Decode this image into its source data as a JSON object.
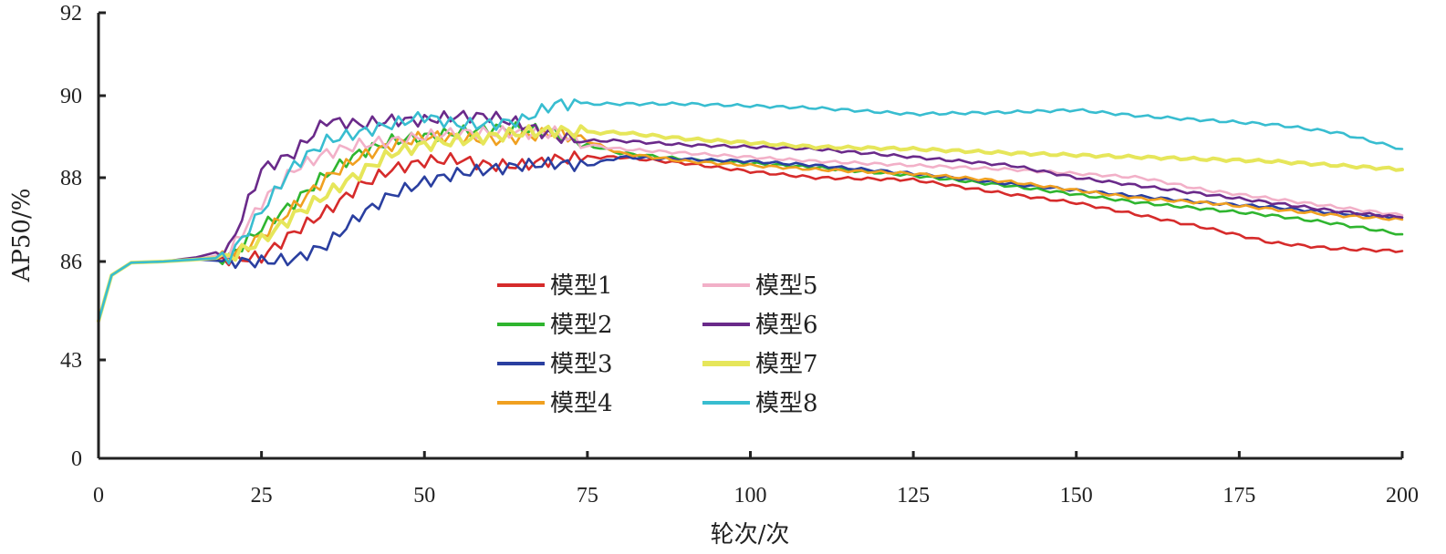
{
  "chart_data": {
    "type": "line",
    "title": "",
    "xlabel": "轮次/次",
    "ylabel": "AP50/%",
    "x_ticks": [
      0,
      25,
      50,
      75,
      100,
      125,
      150,
      175,
      200
    ],
    "x_tick_labels": [
      "0",
      "25",
      "50",
      "75",
      "100",
      "125",
      "150",
      "175",
      "200"
    ],
    "y_tick_labels": [
      "0",
      "43",
      "86",
      "88",
      "90",
      "92"
    ],
    "xlim": [
      0,
      200
    ],
    "note_scale": "non-linear y axis: ticks 0, 43, 86, 88, 90, 92 are equally spaced",
    "grid": false,
    "legend_position": "lower-center",
    "x": [
      0,
      2,
      5,
      10,
      15,
      20,
      25,
      30,
      35,
      40,
      45,
      50,
      55,
      60,
      65,
      70,
      75,
      80,
      90,
      100,
      110,
      125,
      140,
      150,
      160,
      170,
      180,
      190,
      200
    ],
    "series": [
      {
        "name": "模型1",
        "color": "#d62b2b",
        "values": [
          60,
          80,
          85.5,
          86.0,
          86.05,
          86.05,
          86.1,
          86.7,
          87.2,
          87.8,
          88.2,
          88.4,
          88.45,
          88.3,
          88.3,
          88.45,
          88.5,
          88.5,
          88.35,
          88.15,
          88.0,
          87.95,
          87.6,
          87.4,
          87.1,
          86.8,
          86.45,
          86.3,
          86.25
        ]
      },
      {
        "name": "模型2",
        "color": "#2fb52f",
        "values": [
          60,
          80,
          85.5,
          86.0,
          86.05,
          86.1,
          86.8,
          87.4,
          88.1,
          88.6,
          88.9,
          89.0,
          89.1,
          89.2,
          89.2,
          89.1,
          88.8,
          88.6,
          88.45,
          88.35,
          88.25,
          88.05,
          87.8,
          87.6,
          87.4,
          87.25,
          87.1,
          86.9,
          86.65
        ]
      },
      {
        "name": "模型3",
        "color": "#2a3fa0",
        "values": [
          60,
          80,
          85.5,
          86.0,
          86.05,
          86.0,
          86.0,
          86.05,
          86.4,
          87.1,
          87.6,
          87.9,
          88.1,
          88.2,
          88.3,
          88.35,
          88.3,
          88.5,
          88.45,
          88.4,
          88.3,
          88.1,
          87.85,
          87.7,
          87.55,
          87.4,
          87.3,
          87.15,
          87.05
        ]
      },
      {
        "name": "模型4",
        "color": "#f0a020",
        "values": [
          60,
          80,
          85.5,
          86.0,
          86.05,
          86.1,
          86.6,
          87.3,
          88.0,
          88.5,
          88.8,
          89.0,
          89.0,
          88.9,
          89.0,
          89.1,
          88.9,
          88.6,
          88.4,
          88.3,
          88.2,
          88.1,
          87.9,
          87.7,
          87.5,
          87.4,
          87.25,
          87.1,
          87.0
        ]
      },
      {
        "name": "模型5",
        "color": "#f2b0c8",
        "values": [
          60,
          80,
          85.5,
          86.0,
          86.05,
          86.2,
          87.4,
          88.2,
          88.6,
          88.8,
          88.9,
          89.0,
          89.1,
          89.1,
          89.1,
          89.1,
          88.8,
          88.7,
          88.6,
          88.5,
          88.4,
          88.3,
          88.2,
          88.1,
          88.0,
          87.7,
          87.5,
          87.3,
          87.1
        ]
      },
      {
        "name": "模型6",
        "color": "#6a2a8a",
        "values": [
          60,
          80,
          85.5,
          86.0,
          86.1,
          86.3,
          88.2,
          88.6,
          89.4,
          89.3,
          89.4,
          89.4,
          89.5,
          89.5,
          89.3,
          89.0,
          88.9,
          88.9,
          88.8,
          88.75,
          88.7,
          88.5,
          88.3,
          88.0,
          87.8,
          87.6,
          87.4,
          87.2,
          87.05
        ]
      },
      {
        "name": "模型7",
        "color": "#e6e65a",
        "values": [
          60,
          80,
          85.5,
          86.0,
          86.05,
          86.1,
          86.5,
          87.1,
          87.6,
          88.1,
          88.6,
          88.8,
          88.9,
          89.0,
          89.1,
          89.15,
          89.1,
          89.1,
          88.95,
          88.85,
          88.75,
          88.7,
          88.6,
          88.55,
          88.5,
          88.45,
          88.4,
          88.3,
          88.2
        ]
      },
      {
        "name": "模型8",
        "color": "#38bdd0",
        "values": [
          60,
          80,
          85.5,
          86.0,
          86.05,
          86.1,
          87.2,
          88.3,
          88.9,
          89.1,
          89.3,
          89.5,
          89.3,
          89.3,
          89.4,
          89.8,
          89.8,
          89.8,
          89.8,
          89.75,
          89.7,
          89.55,
          89.6,
          89.65,
          89.5,
          89.4,
          89.3,
          89.1,
          88.7
        ]
      }
    ]
  }
}
